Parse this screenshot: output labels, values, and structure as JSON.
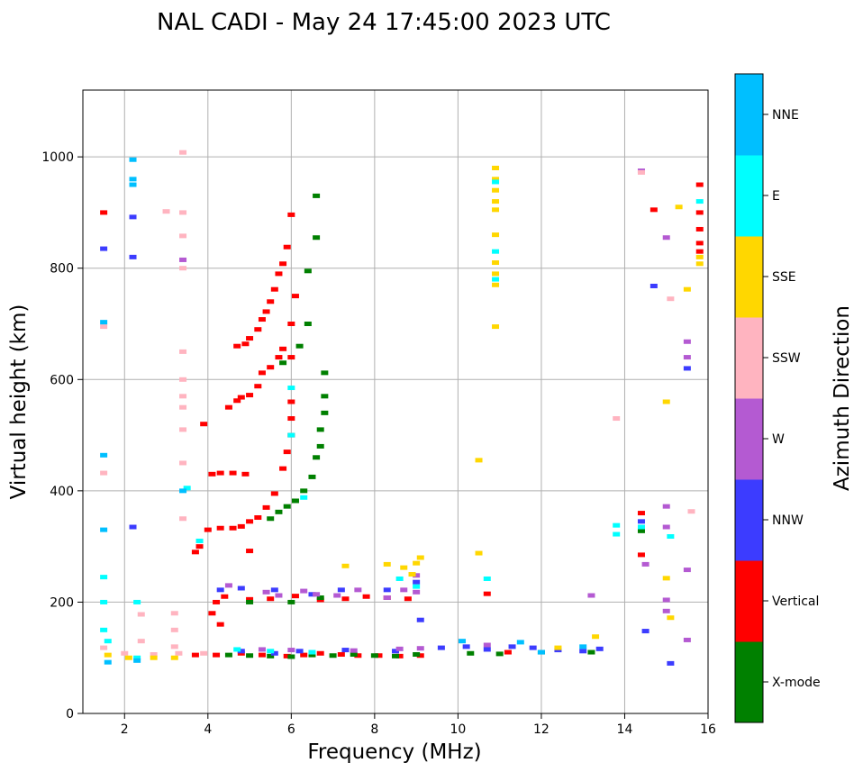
{
  "chart_data": {
    "type": "scatter",
    "title": "NAL CADI - May 24 17:45:00 2023 UTC",
    "xlabel": "Frequency (MHz)",
    "ylabel": "Virtual height (km)",
    "xlim": [
      1,
      16
    ],
    "ylim": [
      0,
      1120
    ],
    "xticks": [
      2,
      4,
      6,
      8,
      10,
      12,
      14,
      16
    ],
    "xtick_labels": [
      "2",
      "4",
      "6",
      "8",
      "10",
      "12",
      "14",
      "16"
    ],
    "yticks": [
      0,
      200,
      400,
      600,
      800,
      1000
    ],
    "ytick_labels": [
      "0",
      "200",
      "400",
      "600",
      "800",
      "1000"
    ],
    "grid": true,
    "colorbar": {
      "label": "Azimuth Direction",
      "categories": [
        {
          "name": "X-mode",
          "color": "#008000"
        },
        {
          "name": "Vertical",
          "color": "#ff0000"
        },
        {
          "name": "NNW",
          "color": "#3c3cff"
        },
        {
          "name": "W",
          "color": "#b45ad2"
        },
        {
          "name": "SSW",
          "color": "#ffb4c0"
        },
        {
          "name": "SSE",
          "color": "#ffd700"
        },
        {
          "name": "E",
          "color": "#00ffff"
        },
        {
          "name": "NNE",
          "color": "#00bfff"
        }
      ]
    },
    "series": [
      {
        "category": "Vertical",
        "points": [
          [
            3.7,
            290
          ],
          [
            3.8,
            300
          ],
          [
            4.0,
            330
          ],
          [
            4.3,
            333
          ],
          [
            4.6,
            333
          ],
          [
            4.8,
            336
          ],
          [
            5.0,
            345
          ],
          [
            5.2,
            352
          ],
          [
            5.4,
            370
          ],
          [
            5.6,
            395
          ],
          [
            5.8,
            440
          ],
          [
            5.9,
            470
          ],
          [
            6.0,
            500
          ],
          [
            6.0,
            530
          ],
          [
            6.0,
            560
          ],
          [
            4.1,
            430
          ],
          [
            4.3,
            432
          ],
          [
            4.6,
            432
          ],
          [
            4.9,
            430
          ],
          [
            3.9,
            520
          ],
          [
            4.5,
            550
          ],
          [
            4.7,
            562
          ],
          [
            4.8,
            568
          ],
          [
            5.0,
            572
          ],
          [
            5.2,
            588
          ],
          [
            5.3,
            612
          ],
          [
            5.5,
            622
          ],
          [
            5.7,
            640
          ],
          [
            5.8,
            655
          ],
          [
            6.0,
            640
          ],
          [
            6.0,
            700
          ],
          [
            6.1,
            750
          ],
          [
            4.7,
            660
          ],
          [
            4.9,
            664
          ],
          [
            5.0,
            674
          ],
          [
            5.2,
            690
          ],
          [
            5.3,
            708
          ],
          [
            5.4,
            722
          ],
          [
            5.5,
            740
          ],
          [
            5.6,
            762
          ],
          [
            5.7,
            790
          ],
          [
            5.8,
            808
          ],
          [
            5.9,
            838
          ],
          [
            6.0,
            896
          ],
          [
            3.7,
            105
          ],
          [
            4.2,
            105
          ],
          [
            4.8,
            108
          ],
          [
            5.3,
            105
          ],
          [
            5.9,
            103
          ],
          [
            6.3,
            105
          ],
          [
            6.7,
            108
          ],
          [
            7.2,
            106
          ],
          [
            7.6,
            104
          ],
          [
            8.1,
            104
          ],
          [
            8.6,
            103
          ],
          [
            9.1,
            104
          ],
          [
            4.2,
            200
          ],
          [
            4.4,
            210
          ],
          [
            5.0,
            205
          ],
          [
            5.5,
            206
          ],
          [
            6.1,
            211
          ],
          [
            6.7,
            204
          ],
          [
            7.3,
            206
          ],
          [
            7.8,
            210
          ],
          [
            8.3,
            208
          ],
          [
            8.8,
            206
          ],
          [
            1.5,
            900
          ],
          [
            4.1,
            180
          ],
          [
            4.3,
            160
          ],
          [
            5.0,
            292
          ],
          [
            10.7,
            215
          ],
          [
            11.2,
            110
          ],
          [
            14.4,
            360
          ],
          [
            14.4,
            285
          ],
          [
            14.7,
            905
          ],
          [
            15.8,
            950
          ],
          [
            15.8,
            900
          ],
          [
            15.8,
            870
          ],
          [
            15.8,
            845
          ],
          [
            15.8,
            830
          ]
        ]
      },
      {
        "category": "X-mode",
        "points": [
          [
            5.5,
            350
          ],
          [
            5.7,
            362
          ],
          [
            5.9,
            372
          ],
          [
            6.1,
            382
          ],
          [
            6.3,
            400
          ],
          [
            6.5,
            425
          ],
          [
            6.6,
            460
          ],
          [
            6.7,
            480
          ],
          [
            6.7,
            510
          ],
          [
            6.8,
            540
          ],
          [
            6.8,
            570
          ],
          [
            5.8,
            630
          ],
          [
            6.2,
            660
          ],
          [
            6.4,
            700
          ],
          [
            6.4,
            795
          ],
          [
            6.6,
            855
          ],
          [
            6.6,
            930
          ],
          [
            6.8,
            612
          ],
          [
            4.5,
            105
          ],
          [
            5.0,
            104
          ],
          [
            5.5,
            103
          ],
          [
            6.0,
            102
          ],
          [
            6.5,
            105
          ],
          [
            7.0,
            104
          ],
          [
            7.5,
            106
          ],
          [
            8.0,
            104
          ],
          [
            8.5,
            103
          ],
          [
            9.0,
            106
          ],
          [
            10.3,
            108
          ],
          [
            11.0,
            107
          ],
          [
            12.0,
            110
          ],
          [
            13.2,
            110
          ],
          [
            5.0,
            200
          ],
          [
            6.0,
            200
          ],
          [
            6.7,
            208
          ],
          [
            14.4,
            328
          ]
        ]
      },
      {
        "category": "NNW",
        "points": [
          [
            1.5,
            835
          ],
          [
            2.2,
            892
          ],
          [
            2.2,
            820
          ],
          [
            2.2,
            335
          ],
          [
            4.3,
            222
          ],
          [
            4.8,
            225
          ],
          [
            5.6,
            222
          ],
          [
            6.5,
            214
          ],
          [
            7.2,
            222
          ],
          [
            8.3,
            222
          ],
          [
            9.0,
            236
          ],
          [
            9.1,
            168
          ],
          [
            4.8,
            112
          ],
          [
            5.6,
            108
          ],
          [
            6.2,
            112
          ],
          [
            7.3,
            114
          ],
          [
            8.5,
            112
          ],
          [
            9.6,
            118
          ],
          [
            10.2,
            120
          ],
          [
            10.7,
            115
          ],
          [
            11.3,
            120
          ],
          [
            11.8,
            118
          ],
          [
            12.4,
            114
          ],
          [
            13.0,
            112
          ],
          [
            13.4,
            116
          ],
          [
            14.4,
            345
          ],
          [
            14.5,
            148
          ],
          [
            14.7,
            768
          ],
          [
            15.1,
            90
          ],
          [
            15.5,
            620
          ]
        ]
      },
      {
        "category": "W",
        "points": [
          [
            3.4,
            815
          ],
          [
            4.5,
            230
          ],
          [
            5.4,
            218
          ],
          [
            5.7,
            212
          ],
          [
            6.3,
            220
          ],
          [
            6.6,
            214
          ],
          [
            7.1,
            212
          ],
          [
            7.6,
            222
          ],
          [
            8.3,
            208
          ],
          [
            8.7,
            222
          ],
          [
            9.0,
            218
          ],
          [
            9.0,
            248
          ],
          [
            5.3,
            115
          ],
          [
            6.0,
            114
          ],
          [
            7.5,
            113
          ],
          [
            8.6,
            116
          ],
          [
            9.1,
            117
          ],
          [
            10.7,
            123
          ],
          [
            13.2,
            212
          ],
          [
            14.4,
            975
          ],
          [
            14.5,
            268
          ],
          [
            15.0,
            855
          ],
          [
            15.0,
            372
          ],
          [
            15.0,
            335
          ],
          [
            15.0,
            204
          ],
          [
            15.0,
            184
          ],
          [
            15.5,
            668
          ],
          [
            15.5,
            640
          ],
          [
            15.5,
            258
          ],
          [
            15.5,
            132
          ]
        ]
      },
      {
        "category": "SSW",
        "points": [
          [
            1.5,
            695
          ],
          [
            1.5,
            432
          ],
          [
            3.0,
            902
          ],
          [
            3.4,
            1008
          ],
          [
            3.4,
            900
          ],
          [
            3.4,
            858
          ],
          [
            3.4,
            800
          ],
          [
            3.4,
            650
          ],
          [
            3.4,
            600
          ],
          [
            3.4,
            570
          ],
          [
            3.4,
            550
          ],
          [
            3.4,
            510
          ],
          [
            3.4,
            450
          ],
          [
            3.4,
            350
          ],
          [
            2.4,
            178
          ],
          [
            2.4,
            130
          ],
          [
            3.2,
            180
          ],
          [
            3.2,
            150
          ],
          [
            3.2,
            120
          ],
          [
            1.5,
            118
          ],
          [
            2.0,
            108
          ],
          [
            2.7,
            106
          ],
          [
            3.3,
            108
          ],
          [
            3.9,
            108
          ],
          [
            13.8,
            530
          ],
          [
            14.4,
            972
          ],
          [
            15.1,
            745
          ],
          [
            15.6,
            363
          ]
        ]
      },
      {
        "category": "SSE",
        "points": [
          [
            10.9,
            980
          ],
          [
            10.9,
            960
          ],
          [
            10.9,
            940
          ],
          [
            10.9,
            920
          ],
          [
            10.9,
            905
          ],
          [
            10.9,
            860
          ],
          [
            10.9,
            810
          ],
          [
            10.9,
            790
          ],
          [
            10.9,
            770
          ],
          [
            10.9,
            695
          ],
          [
            10.5,
            455
          ],
          [
            10.5,
            288
          ],
          [
            7.3,
            265
          ],
          [
            8.3,
            268
          ],
          [
            8.7,
            262
          ],
          [
            9.0,
            270
          ],
          [
            9.1,
            280
          ],
          [
            8.9,
            250
          ],
          [
            1.6,
            105
          ],
          [
            2.1,
            100
          ],
          [
            2.7,
            100
          ],
          [
            3.2,
            100
          ],
          [
            12.4,
            118
          ],
          [
            13.3,
            138
          ],
          [
            15.0,
            560
          ],
          [
            15.0,
            243
          ],
          [
            15.1,
            172
          ],
          [
            15.3,
            910
          ],
          [
            15.5,
            762
          ],
          [
            15.8,
            820
          ],
          [
            15.8,
            808
          ]
        ]
      },
      {
        "category": "E",
        "points": [
          [
            1.5,
            245
          ],
          [
            1.5,
            200
          ],
          [
            1.5,
            150
          ],
          [
            1.6,
            130
          ],
          [
            2.3,
            200
          ],
          [
            2.3,
            100
          ],
          [
            3.5,
            405
          ],
          [
            3.8,
            310
          ],
          [
            6.0,
            585
          ],
          [
            6.0,
            500
          ],
          [
            6.3,
            388
          ],
          [
            10.7,
            242
          ],
          [
            10.9,
            830
          ],
          [
            10.9,
            780
          ],
          [
            10.9,
            955
          ],
          [
            4.7,
            115
          ],
          [
            5.5,
            112
          ],
          [
            6.5,
            110
          ],
          [
            8.6,
            242
          ],
          [
            9.0,
            228
          ],
          [
            13.8,
            338
          ],
          [
            13.8,
            322
          ],
          [
            14.4,
            335
          ],
          [
            15.1,
            318
          ],
          [
            15.8,
            920
          ]
        ]
      },
      {
        "category": "NNE",
        "points": [
          [
            1.5,
            464
          ],
          [
            1.5,
            330
          ],
          [
            1.5,
            703
          ],
          [
            2.2,
            995
          ],
          [
            2.2,
            960
          ],
          [
            2.2,
            950
          ],
          [
            3.4,
            400
          ],
          [
            2.3,
            95
          ],
          [
            1.6,
            92
          ],
          [
            10.1,
            130
          ],
          [
            11.5,
            128
          ],
          [
            12.0,
            110
          ],
          [
            13.0,
            120
          ]
        ]
      }
    ]
  }
}
